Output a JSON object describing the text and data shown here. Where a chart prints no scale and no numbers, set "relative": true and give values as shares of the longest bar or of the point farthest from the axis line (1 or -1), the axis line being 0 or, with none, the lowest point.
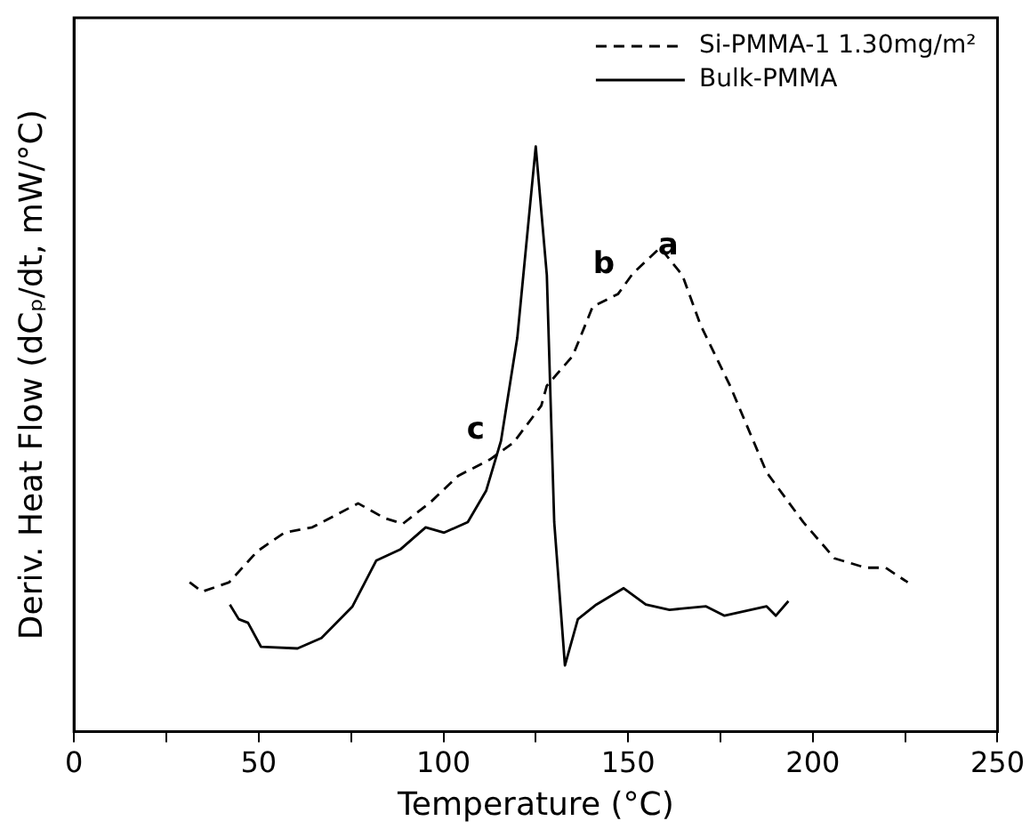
{
  "chart_data": {
    "type": "line",
    "relative": true,
    "xlabel": "Temperature (°C)",
    "ylabel": "Deriv. Heat Flow (dCₚ/dt, mW/°C)",
    "xlim": [
      0,
      250
    ],
    "xticks": [
      0,
      {
        "value": 25,
        "label": null
      },
      50,
      {
        "value": 75,
        "label": null
      },
      100,
      {
        "value": 125,
        "label": null
      },
      150,
      {
        "value": 175,
        "label": null
      },
      200,
      {
        "value": 225,
        "label": null
      },
      250
    ],
    "legend": "top right",
    "marker": "none",
    "grid": false,
    "annotations": [
      {
        "text": "a",
        "x": 164.7,
        "y": 0.78
      },
      {
        "text": "b",
        "x": 147.3,
        "y": 0.748
      },
      {
        "text": "c",
        "x": 112.6,
        "y": 0.465
      }
    ],
    "series": [
      {
        "name": "Si-PMMA-1 1.30mg/m²",
        "color": "#000000",
        "line_style": "dashed",
        "x": [
          31.3,
          34.7,
          42,
          49.6,
          57,
          64.5,
          76.9,
          84,
          89,
          96.7,
          104,
          112.6,
          119,
          126.5,
          128,
          135,
          140.4,
          147.3,
          151.3,
          158.7,
          164.7,
          169.6,
          177.6,
          187.5,
          197.4,
          205.9,
          214.3,
          219.7,
          225.7
        ],
        "values": [
          0.255,
          0.239,
          0.255,
          0.308,
          0.34,
          0.349,
          0.39,
          0.365,
          0.355,
          0.393,
          0.437,
          0.465,
          0.494,
          0.557,
          0.591,
          0.642,
          0.726,
          0.748,
          0.783,
          0.827,
          0.78,
          0.695,
          0.591,
          0.443,
          0.358,
          0.296,
          0.28,
          0.28,
          0.255
        ]
      },
      {
        "name": "Bulk-PMMA",
        "color": "#000000",
        "line_style": "solid",
        "x": [
          42.2,
          44.6,
          47.1,
          50.6,
          60.5,
          67,
          75.4,
          81.8,
          88.3,
          95.2,
          100.2,
          106.6,
          111.6,
          115.6,
          120,
          125,
          128,
          130,
          132.9,
          136.4,
          141.4,
          148.8,
          154.8,
          161.2,
          171.1,
          176.1,
          187.5,
          190,
          193.4
        ],
        "values": [
          0.217,
          0.192,
          0.186,
          0.145,
          0.142,
          0.16,
          0.214,
          0.292,
          0.311,
          0.349,
          0.34,
          0.358,
          0.412,
          0.497,
          0.673,
          1.0,
          0.78,
          0.358,
          0.113,
          0.192,
          0.217,
          0.245,
          0.217,
          0.208,
          0.214,
          0.198,
          0.214,
          0.198,
          0.223
        ]
      }
    ]
  }
}
